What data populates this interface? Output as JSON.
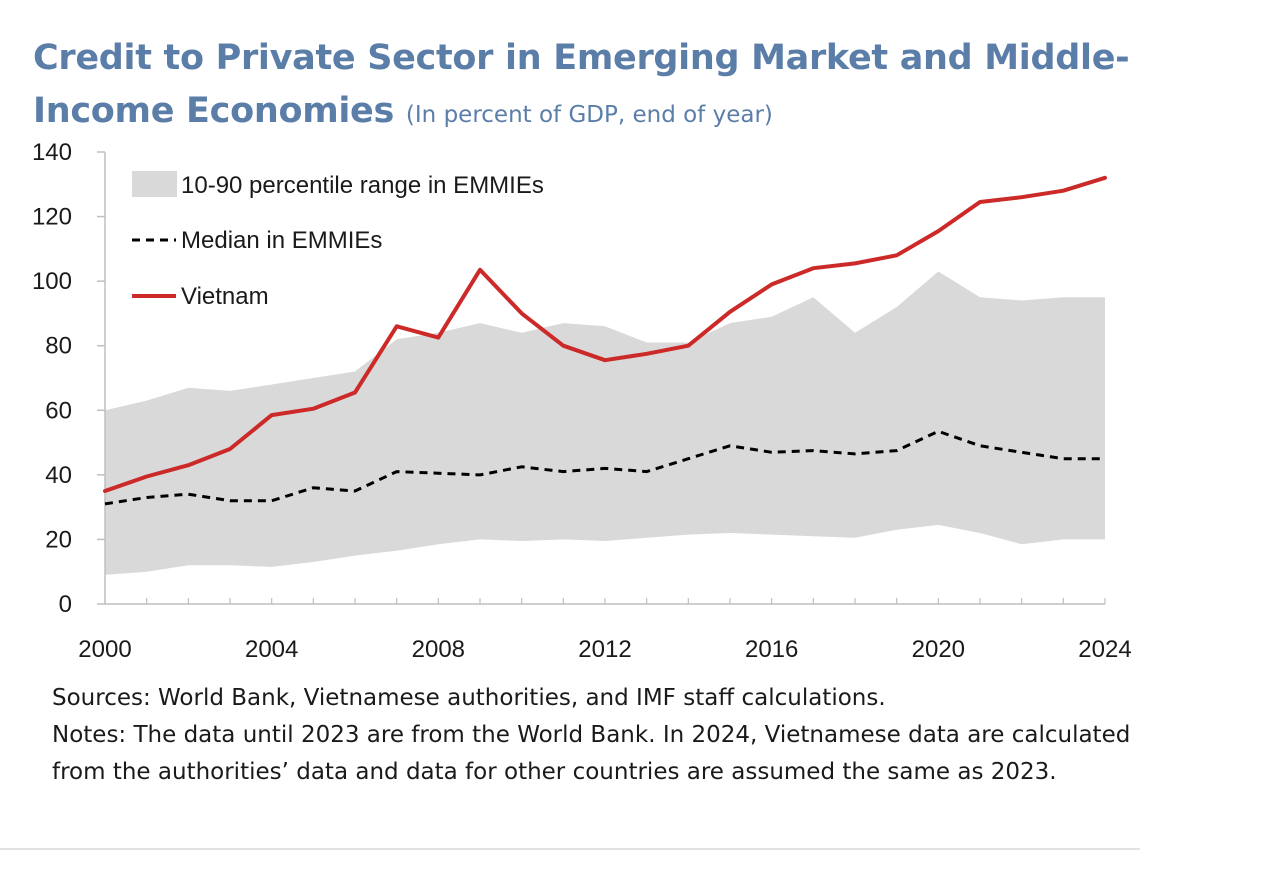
{
  "chart_data": {
    "type": "area",
    "title": "Credit to Private Sector in Emerging Market and Middle-Income Economies",
    "title_line1": "Credit to Private Sector in Emerging Market and Middle-",
    "title_line2": "Income Economies",
    "subtitle": "(In percent of GDP, end of year)",
    "xlabel": "",
    "ylabel": "",
    "xlim": [
      2000,
      2024
    ],
    "ylim": [
      0,
      140
    ],
    "x_ticks": [
      "2000",
      "2004",
      "2008",
      "2012",
      "2016",
      "2020",
      "2024"
    ],
    "y_ticks": [
      "0",
      "20",
      "40",
      "60",
      "80",
      "100",
      "120",
      "140"
    ],
    "x": [
      2000,
      2001,
      2002,
      2003,
      2004,
      2005,
      2006,
      2007,
      2008,
      2009,
      2010,
      2011,
      2012,
      2013,
      2014,
      2015,
      2016,
      2017,
      2018,
      2019,
      2020,
      2021,
      2022,
      2023,
      2024
    ],
    "series": [
      {
        "name": "10-90 percentile range in EMMIEs",
        "kind": "band",
        "upper": [
          60,
          63,
          67,
          66,
          68,
          70,
          72,
          82,
          84,
          87,
          84,
          87,
          86,
          81,
          81,
          87,
          89,
          95,
          84,
          92,
          103,
          95,
          94,
          95,
          95
        ],
        "lower": [
          9,
          10,
          12,
          12,
          11.5,
          13,
          15,
          16.5,
          18.5,
          20,
          19.5,
          20,
          19.5,
          20.5,
          21.5,
          22,
          21.5,
          21,
          20.5,
          23,
          24.5,
          22,
          18.5,
          20,
          20
        ]
      },
      {
        "name": "Median in EMMIEs",
        "kind": "dashed-line",
        "values": [
          31,
          33,
          34,
          32,
          32,
          36,
          35,
          41,
          40.5,
          40,
          42.5,
          41,
          42,
          41,
          45,
          49,
          47,
          47.5,
          46.5,
          47.5,
          53.5,
          49,
          47,
          45,
          45
        ]
      },
      {
        "name": "Vietnam",
        "kind": "line",
        "values": [
          35,
          39.5,
          43,
          48,
          58.5,
          60.5,
          65.5,
          86,
          82.5,
          103.5,
          90,
          80,
          75.5,
          77.5,
          80,
          90.5,
          99,
          104,
          105.5,
          108,
          115.5,
          124.5,
          126,
          128,
          132
        ]
      }
    ],
    "legend_position": "top-left",
    "grid": false,
    "colors": {
      "band": "#d9d9d9",
      "median": "#000000",
      "vietnam": "#cc2a29",
      "axis": "#bfbfbf",
      "title": "#5b7ea8"
    }
  },
  "footer": {
    "sources": "Sources: World Bank, Vietnamese authorities, and IMF staff calculations.",
    "notes": "Notes: The data until 2023 are from the World Bank. In 2024, Vietnamese data are calculated from the authorities’ data and data for other countries are assumed the same as 2023."
  }
}
